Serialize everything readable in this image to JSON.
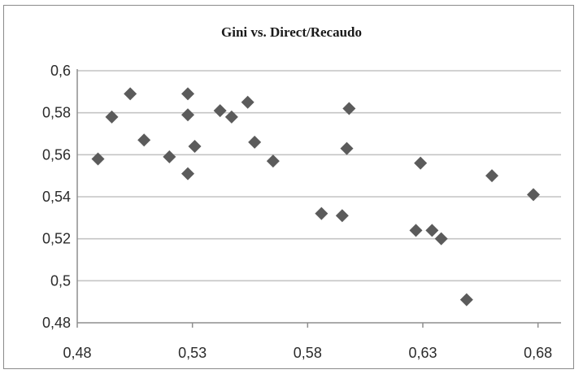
{
  "chart_data": {
    "type": "scatter",
    "title": "Gini vs. Direct/Recaudo",
    "xlabel": "",
    "ylabel": "",
    "xlim": [
      0.48,
      0.69
    ],
    "ylim": [
      0.48,
      0.6
    ],
    "x_ticks": [
      {
        "value": 0.48,
        "label": "0,48"
      },
      {
        "value": 0.53,
        "label": "0,53"
      },
      {
        "value": 0.58,
        "label": "0,58"
      },
      {
        "value": 0.63,
        "label": "0,63"
      },
      {
        "value": 0.68,
        "label": "0,68"
      }
    ],
    "y_ticks": [
      {
        "value": 0.6,
        "label": "0,6"
      },
      {
        "value": 0.58,
        "label": "0,58"
      },
      {
        "value": 0.56,
        "label": "0,56"
      },
      {
        "value": 0.54,
        "label": "0,54"
      },
      {
        "value": 0.52,
        "label": "0,52"
      },
      {
        "value": 0.5,
        "label": "0,5"
      },
      {
        "value": 0.48,
        "label": "0,48"
      }
    ],
    "grid": "horizontal",
    "legend": "none",
    "marker": "diamond",
    "marker_color": "#5b5b5b",
    "grid_color": "#c4c4c4",
    "points": [
      {
        "x": 0.489,
        "y": 0.558
      },
      {
        "x": 0.495,
        "y": 0.578
      },
      {
        "x": 0.503,
        "y": 0.589
      },
      {
        "x": 0.509,
        "y": 0.567
      },
      {
        "x": 0.52,
        "y": 0.559
      },
      {
        "x": 0.528,
        "y": 0.589
      },
      {
        "x": 0.528,
        "y": 0.579
      },
      {
        "x": 0.528,
        "y": 0.551
      },
      {
        "x": 0.531,
        "y": 0.564
      },
      {
        "x": 0.542,
        "y": 0.581
      },
      {
        "x": 0.547,
        "y": 0.578
      },
      {
        "x": 0.554,
        "y": 0.585
      },
      {
        "x": 0.557,
        "y": 0.566
      },
      {
        "x": 0.565,
        "y": 0.557
      },
      {
        "x": 0.586,
        "y": 0.532
      },
      {
        "x": 0.595,
        "y": 0.531
      },
      {
        "x": 0.598,
        "y": 0.582
      },
      {
        "x": 0.597,
        "y": 0.563
      },
      {
        "x": 0.627,
        "y": 0.524
      },
      {
        "x": 0.629,
        "y": 0.556
      },
      {
        "x": 0.634,
        "y": 0.524
      },
      {
        "x": 0.638,
        "y": 0.52
      },
      {
        "x": 0.649,
        "y": 0.491
      },
      {
        "x": 0.66,
        "y": 0.55
      },
      {
        "x": 0.678,
        "y": 0.541
      }
    ]
  }
}
